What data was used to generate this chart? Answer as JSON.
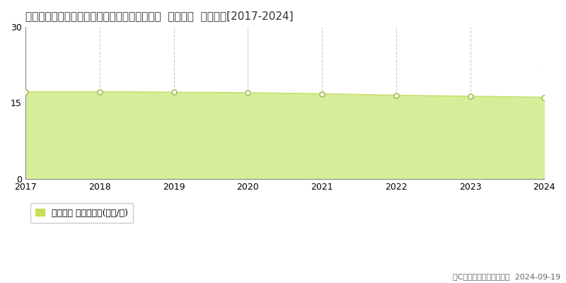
{
  "title": "静岡県静岡市清水区草ヶ谷字足高２９９番７外  基準地価  地価推移[2017-2024]",
  "years": [
    2017,
    2018,
    2019,
    2020,
    2021,
    2022,
    2023,
    2024
  ],
  "values": [
    17.2,
    17.2,
    17.1,
    17.0,
    16.8,
    16.5,
    16.3,
    16.1
  ],
  "ylim": [
    0,
    30
  ],
  "yticks": [
    0,
    15,
    30
  ],
  "line_color": "#c8e06e",
  "fill_color": "#d6ed9a",
  "marker_facecolor": "#ffffff",
  "marker_edgecolor": "#aabb55",
  "bg_color": "#ffffff",
  "grid_vcolor": "#cccccc",
  "grid_hcolor": "#cccccc",
  "legend_label": "基準地価 平均坪単価(万円/坪)",
  "legend_square_color": "#c8de5a",
  "copyright_text": "（C）土地価格ドットコム  2024-09-19",
  "title_fontsize": 11,
  "axis_fontsize": 9,
  "legend_fontsize": 9,
  "copyright_fontsize": 8
}
